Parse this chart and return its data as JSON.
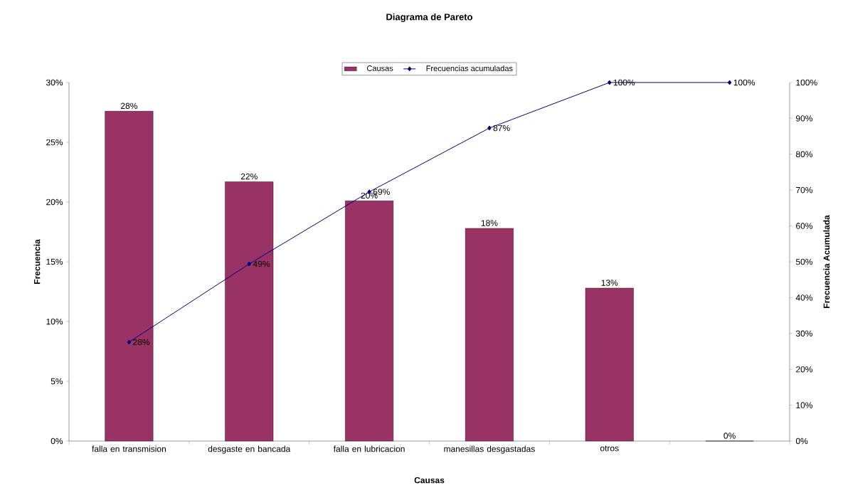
{
  "chart_data": {
    "type": "bar",
    "title": "Diagrama de Pareto",
    "xlabel": "Causas",
    "ylabel": "Frecuencia",
    "y2label": "Frecuencia Acumulada",
    "categories": [
      "falla en transmision",
      "desgaste en bancada",
      "falla en lubricacion",
      "manesillas desgastadas",
      "otros",
      null
    ],
    "series": [
      {
        "name": "Causas",
        "color": "#993366",
        "values": [
          27.6,
          21.7,
          20.1,
          17.8,
          12.8,
          0
        ],
        "value_labels": [
          "28%",
          "22%",
          "20%",
          "18%",
          "13%",
          "0%"
        ]
      },
      {
        "name": "Frecuencias acumuladas",
        "type": "line",
        "axis": "y2",
        "color": "#000080",
        "values": [
          27.6,
          49.4,
          69.5,
          87.3,
          100,
          100
        ],
        "value_labels": [
          "28%",
          "49%",
          "69%",
          "87%",
          "100%",
          "100%"
        ]
      }
    ],
    "ylim": [
      0,
      30
    ],
    "yticks": [
      {
        "value": 0,
        "label": "0%"
      },
      {
        "value": 5,
        "label": "5%"
      },
      {
        "value": 10,
        "label": "10%"
      },
      {
        "value": 15,
        "label": "15%"
      },
      {
        "value": 20,
        "label": "20%"
      },
      {
        "value": 25,
        "label": "25%"
      },
      {
        "value": 30,
        "label": "30%"
      }
    ],
    "y2lim": [
      0,
      100
    ],
    "y2ticks": [
      {
        "value": 0,
        "label": "0%"
      },
      {
        "value": 10,
        "label": "10%"
      },
      {
        "value": 20,
        "label": "20%"
      },
      {
        "value": 30,
        "label": "30%"
      },
      {
        "value": 40,
        "label": "40%"
      },
      {
        "value": 50,
        "label": "50%"
      },
      {
        "value": 60,
        "label": "60%"
      },
      {
        "value": 70,
        "label": "70%"
      },
      {
        "value": 80,
        "label": "80%"
      },
      {
        "value": 90,
        "label": "90%"
      },
      {
        "value": 100,
        "label": "100%"
      }
    ],
    "legend": "top",
    "marker": "diamond"
  }
}
